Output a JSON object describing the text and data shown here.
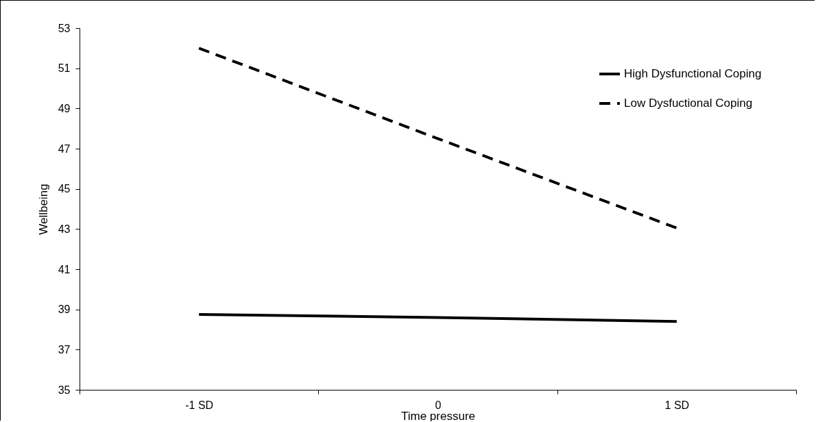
{
  "chart_data": {
    "type": "line",
    "xlabel": "Time pressure",
    "ylabel": "Wellbeing",
    "categories": [
      "-1 SD",
      "0",
      "1 SD"
    ],
    "series": [
      {
        "name": "High Dysfunctional Coping",
        "color": "#000000",
        "line_style": "solid",
        "values": [
          38.75,
          38.6,
          38.4
        ]
      },
      {
        "name": "Low Dysfuctional Coping",
        "color": "#000000",
        "line_style": "dashed",
        "values": [
          52.0,
          47.5,
          43.05
        ]
      }
    ],
    "ylim": [
      35,
      53
    ],
    "yticks": [
      35,
      37,
      39,
      41,
      43,
      45,
      47,
      49,
      51,
      53
    ],
    "grid": false,
    "legend": "top right"
  }
}
